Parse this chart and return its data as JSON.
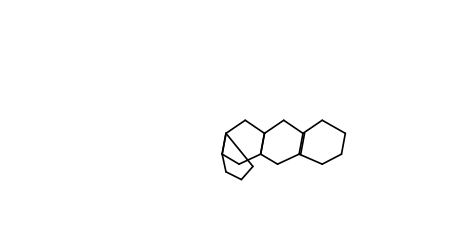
{
  "bg_color": "#ffffff",
  "line_color": "#000000",
  "bond_width": 1.2,
  "figsize": [
    4.74,
    2.45
  ],
  "dpi": 100
}
